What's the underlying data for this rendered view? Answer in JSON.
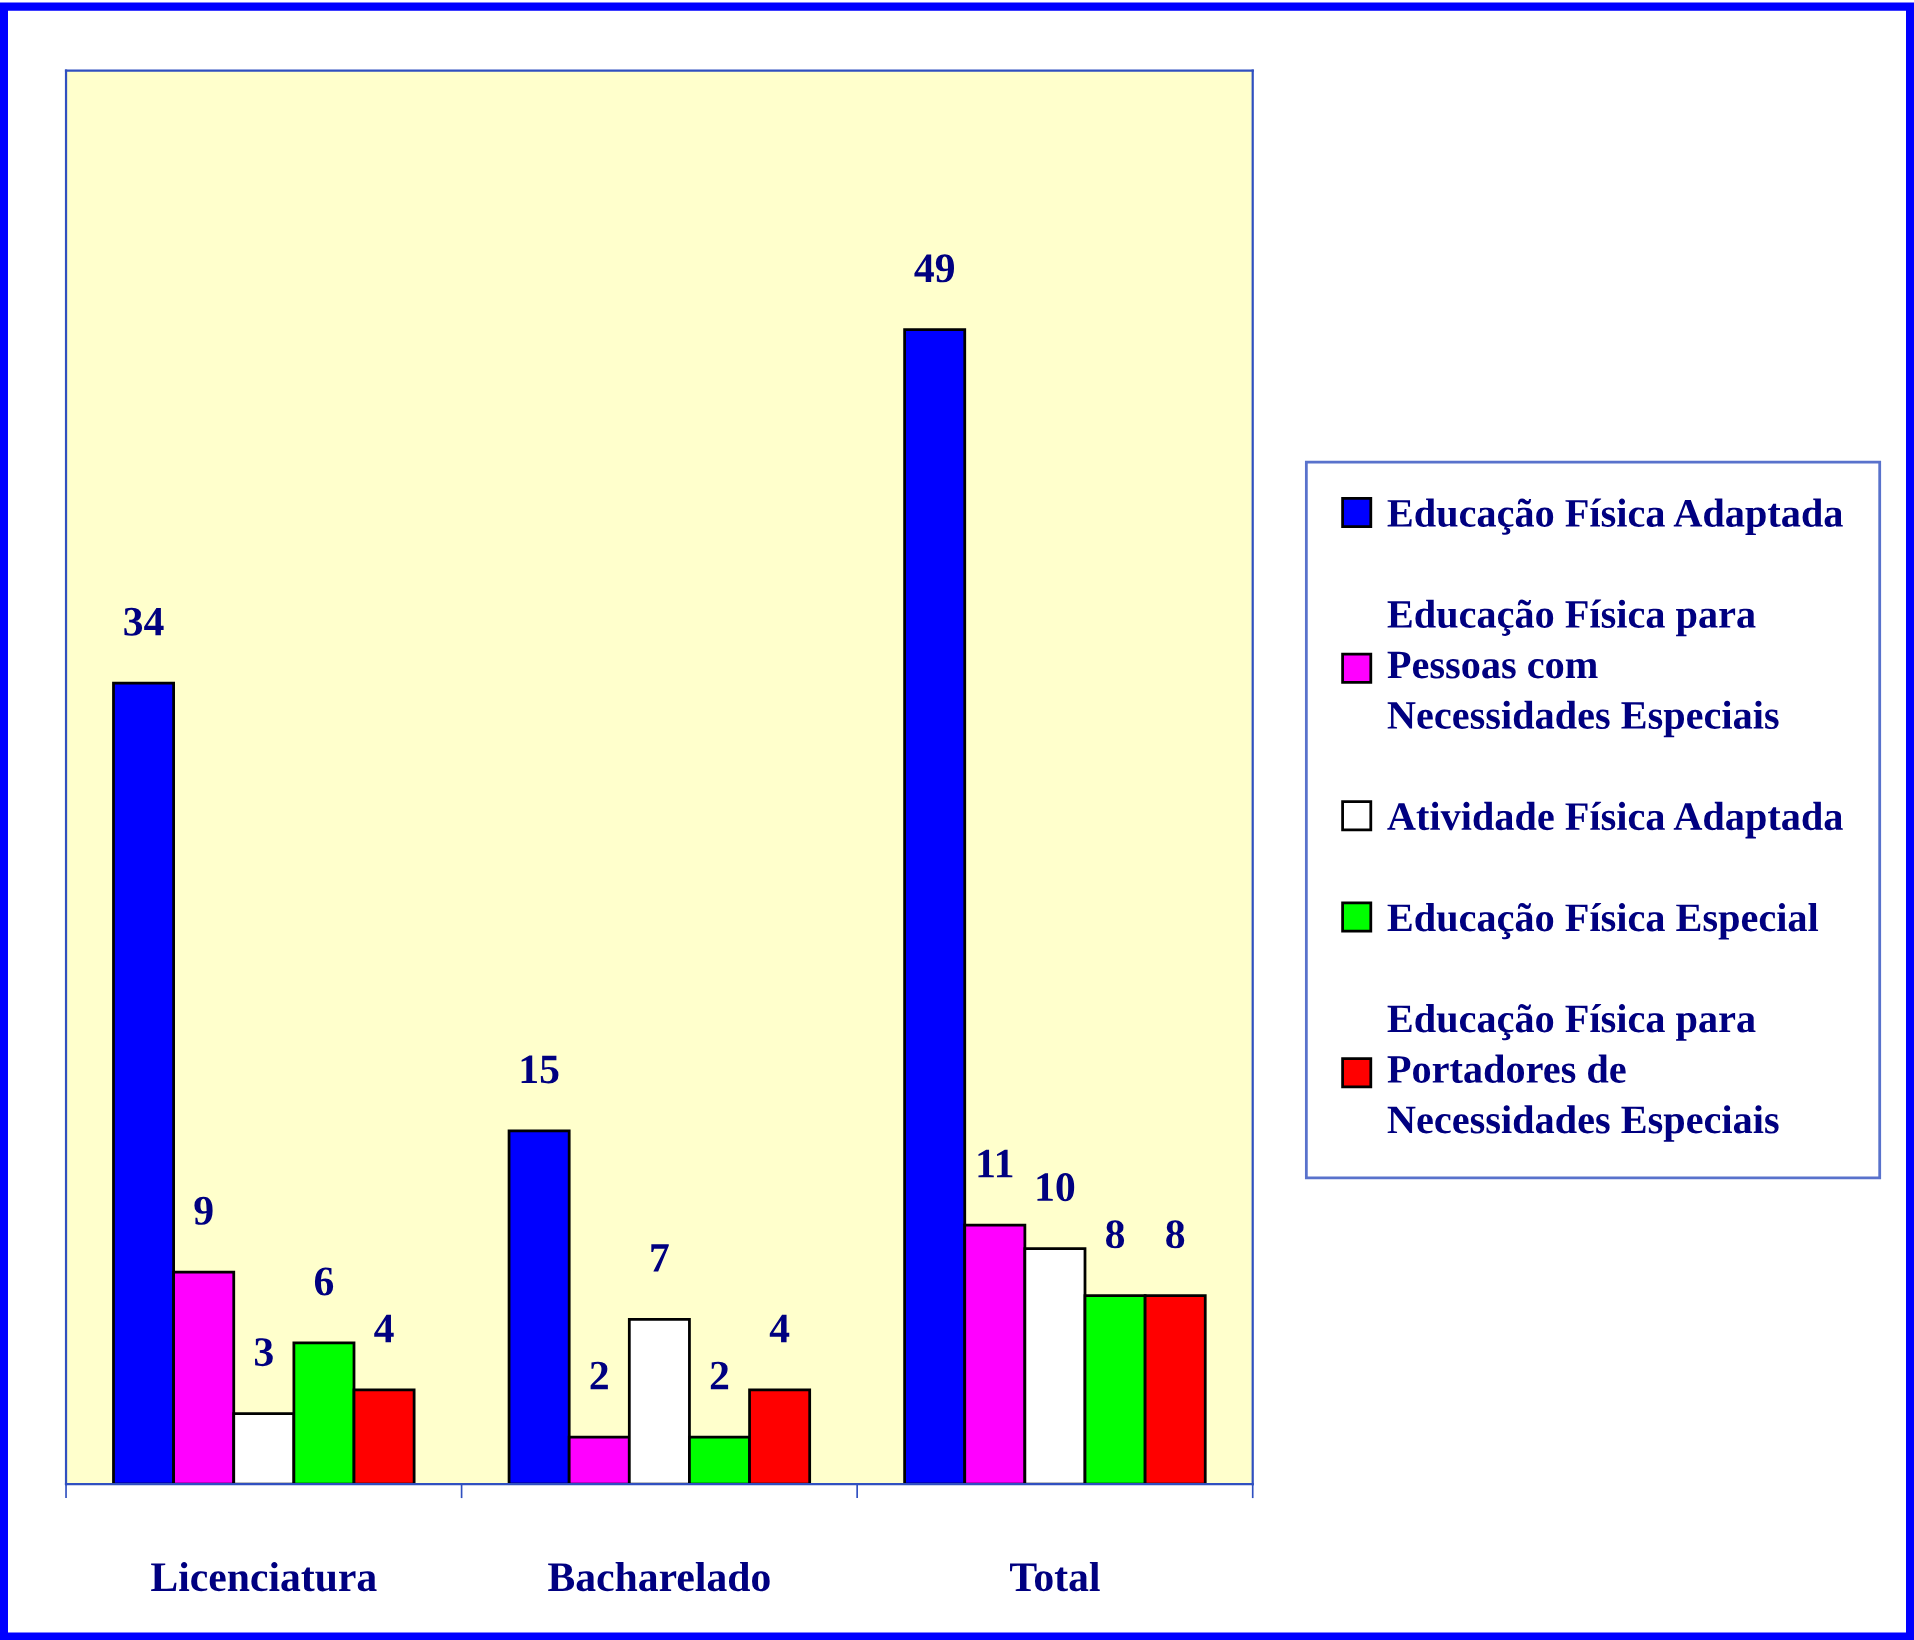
{
  "chart_data": {
    "type": "bar",
    "categories": [
      "Licenciatura",
      "Bacharelado",
      "Total"
    ],
    "series": [
      {
        "name": "Educação Física Adaptada",
        "color": "#0000ff",
        "values": [
          34,
          15,
          49
        ]
      },
      {
        "name": "Educação Física para\nPessoas com\nNecessidades Especiais",
        "color": "#ff00ff",
        "values": [
          9,
          2,
          11
        ]
      },
      {
        "name": "Atividade Física Adaptada",
        "color": "#ffffff",
        "values": [
          3,
          7,
          10
        ]
      },
      {
        "name": "Educação Física Especial",
        "color": "#00ff00",
        "values": [
          6,
          2,
          8
        ]
      },
      {
        "name": "Educação Física para\nPortadores de\nNecessidades Especiais",
        "color": "#ff0000",
        "values": [
          4,
          4,
          8
        ]
      }
    ],
    "ylim": [
      0,
      60
    ],
    "tick_labels": "x",
    "data_labels": true,
    "grid": false,
    "legend": "right"
  }
}
